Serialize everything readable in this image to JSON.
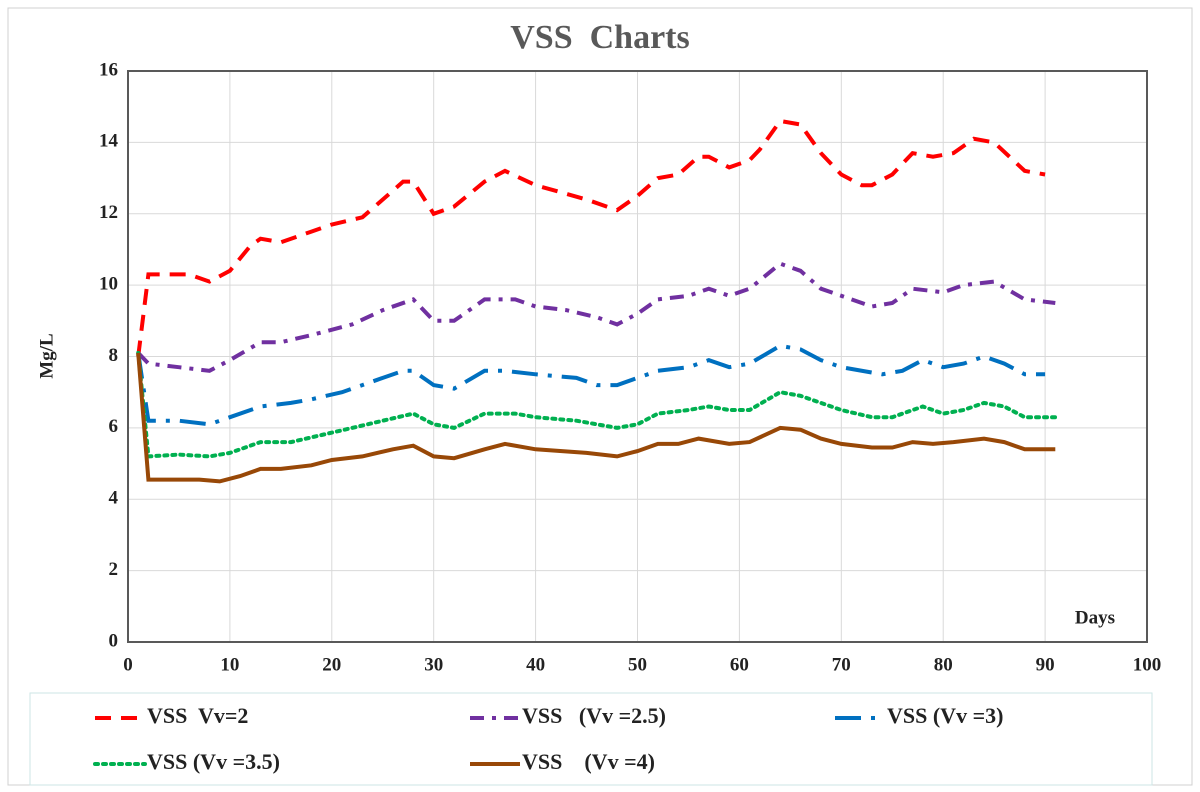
{
  "chart_data": {
    "type": "line",
    "title": "VSS  Charts",
    "xlabel": "Days",
    "ylabel": "Mg/L",
    "xlim": [
      0,
      100
    ],
    "xticks": [
      0,
      10,
      20,
      30,
      40,
      50,
      60,
      70,
      80,
      90,
      100
    ],
    "ylim": [
      0,
      16
    ],
    "yticks": [
      0,
      2,
      4,
      6,
      8,
      10,
      12,
      14,
      16
    ],
    "grid": true,
    "series": [
      {
        "name": "VSS  Vv=2",
        "color": "#ff0000",
        "style": "dashed",
        "x": [
          1,
          2,
          4,
          6,
          8,
          10,
          12,
          13,
          15,
          18,
          20,
          23,
          25,
          27,
          28,
          30,
          32,
          35,
          37,
          40,
          45,
          48,
          50,
          52,
          54,
          56,
          57,
          59,
          61,
          62,
          64,
          66,
          68,
          70,
          72,
          73,
          75,
          77,
          79,
          81,
          83,
          85,
          88,
          90
        ],
        "values": [
          8.0,
          10.3,
          10.3,
          10.3,
          10.1,
          10.4,
          11.1,
          11.3,
          11.2,
          11.5,
          11.7,
          11.9,
          12.4,
          12.9,
          12.9,
          12.0,
          12.2,
          12.9,
          13.2,
          12.8,
          12.4,
          12.1,
          12.5,
          13.0,
          13.1,
          13.6,
          13.6,
          13.3,
          13.5,
          13.8,
          14.6,
          14.5,
          13.7,
          13.1,
          12.8,
          12.8,
          13.1,
          13.7,
          13.6,
          13.7,
          14.1,
          14.0,
          13.2,
          13.1
        ]
      },
      {
        "name": "VSS   (Vv =2.5)",
        "color": "#7030a0",
        "style": "dashdot",
        "x": [
          1,
          2,
          5,
          8,
          10,
          13,
          15,
          18,
          22,
          25,
          28,
          30,
          32,
          35,
          38,
          40,
          43,
          46,
          48,
          50,
          52,
          55,
          57,
          59,
          61,
          64,
          66,
          68,
          70,
          73,
          75,
          77,
          80,
          82,
          85,
          88,
          91
        ],
        "values": [
          8.1,
          7.8,
          7.7,
          7.6,
          7.9,
          8.4,
          8.4,
          8.6,
          8.9,
          9.3,
          9.6,
          9.0,
          9.0,
          9.6,
          9.6,
          9.4,
          9.3,
          9.1,
          8.9,
          9.2,
          9.6,
          9.7,
          9.9,
          9.7,
          9.9,
          10.6,
          10.4,
          9.9,
          9.7,
          9.4,
          9.5,
          9.9,
          9.8,
          10.0,
          10.1,
          9.6,
          9.5
        ]
      },
      {
        "name": "VSS (Vv =3)",
        "color": "#0070c0",
        "style": "longdashdot",
        "x": [
          1,
          2,
          5,
          8,
          10,
          13,
          16,
          18,
          21,
          25,
          27,
          28,
          30,
          32,
          35,
          37,
          40,
          44,
          46,
          48,
          50,
          52,
          55,
          57,
          59,
          61,
          64,
          66,
          68,
          70,
          74,
          76,
          78,
          80,
          82,
          84,
          86,
          88,
          90
        ],
        "values": [
          8.1,
          6.2,
          6.2,
          6.1,
          6.3,
          6.6,
          6.7,
          6.8,
          7.0,
          7.4,
          7.6,
          7.6,
          7.2,
          7.1,
          7.6,
          7.6,
          7.5,
          7.4,
          7.2,
          7.2,
          7.4,
          7.6,
          7.7,
          7.9,
          7.7,
          7.8,
          8.3,
          8.2,
          7.9,
          7.7,
          7.5,
          7.6,
          7.9,
          7.7,
          7.8,
          8.0,
          7.8,
          7.5,
          7.5
        ]
      },
      {
        "name": "VSS (Vv =3.5)",
        "color": "#00b050",
        "style": "dotted",
        "x": [
          1,
          2,
          5,
          8,
          10,
          13,
          16,
          19,
          22,
          25,
          28,
          30,
          32,
          35,
          38,
          40,
          44,
          48,
          50,
          52,
          55,
          57,
          59,
          61,
          64,
          66,
          68,
          70,
          73,
          75,
          78,
          80,
          82,
          84,
          86,
          88,
          91
        ],
        "values": [
          8.1,
          5.2,
          5.25,
          5.2,
          5.3,
          5.6,
          5.6,
          5.8,
          6.0,
          6.2,
          6.4,
          6.1,
          6.0,
          6.4,
          6.4,
          6.3,
          6.2,
          6.0,
          6.1,
          6.4,
          6.5,
          6.6,
          6.5,
          6.5,
          7.0,
          6.9,
          6.7,
          6.5,
          6.3,
          6.3,
          6.6,
          6.4,
          6.5,
          6.7,
          6.6,
          6.3,
          6.3
        ]
      },
      {
        "name": "VSS    (Vv =4)",
        "color": "#984807",
        "style": "solid",
        "x": [
          1,
          2,
          5,
          7,
          9,
          11,
          13,
          15,
          18,
          20,
          23,
          26,
          28,
          30,
          32,
          35,
          37,
          40,
          45,
          48,
          50,
          52,
          54,
          56,
          59,
          61,
          64,
          66,
          68,
          70,
          73,
          75,
          77,
          79,
          81,
          84,
          86,
          88,
          91
        ],
        "values": [
          8.1,
          4.55,
          4.55,
          4.55,
          4.5,
          4.65,
          4.85,
          4.85,
          4.95,
          5.1,
          5.2,
          5.4,
          5.5,
          5.2,
          5.15,
          5.4,
          5.55,
          5.4,
          5.3,
          5.2,
          5.35,
          5.55,
          5.55,
          5.7,
          5.55,
          5.6,
          6.0,
          5.95,
          5.7,
          5.55,
          5.45,
          5.45,
          5.6,
          5.55,
          5.6,
          5.7,
          5.6,
          5.4,
          5.4
        ]
      }
    ]
  }
}
